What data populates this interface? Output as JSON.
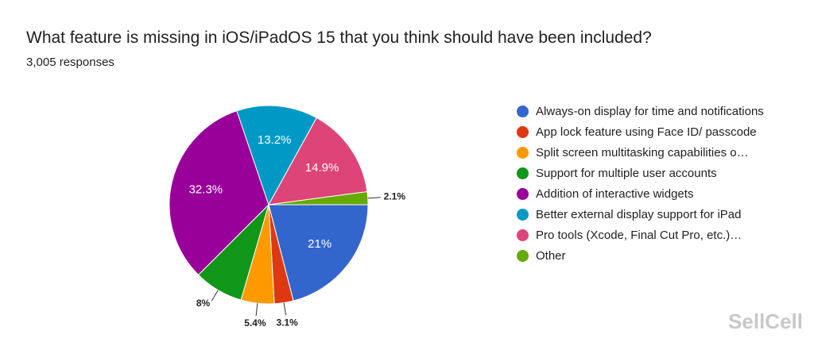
{
  "chart_data": {
    "type": "pie",
    "title": "What feature is missing in iOS/iPadOS 15 that you think should have been included?",
    "subtitle": "3,005 responses",
    "watermark": "SellCell",
    "categories": [
      "Always-on display for time and notifications",
      "App lock feature using Face ID/ passcode",
      "Split screen multitasking capabilities o…",
      "Support for multiple user accounts",
      "Addition of interactive widgets",
      "Better external display support for iPad",
      "Pro tools (Xcode, Final Cut Pro, etc.)…",
      "Other"
    ],
    "values": [
      21,
      3.1,
      5.4,
      8,
      32.3,
      13.2,
      14.9,
      2.1
    ],
    "value_labels": [
      "21%",
      "3.1%",
      "5.4%",
      "8%",
      "32.3%",
      "13.2%",
      "14.9%",
      "2.1%"
    ],
    "colors": [
      "#3366cc",
      "#dc3912",
      "#ff9900",
      "#109618",
      "#990099",
      "#0099c6",
      "#dd4477",
      "#66aa00"
    ],
    "legend": "right"
  }
}
